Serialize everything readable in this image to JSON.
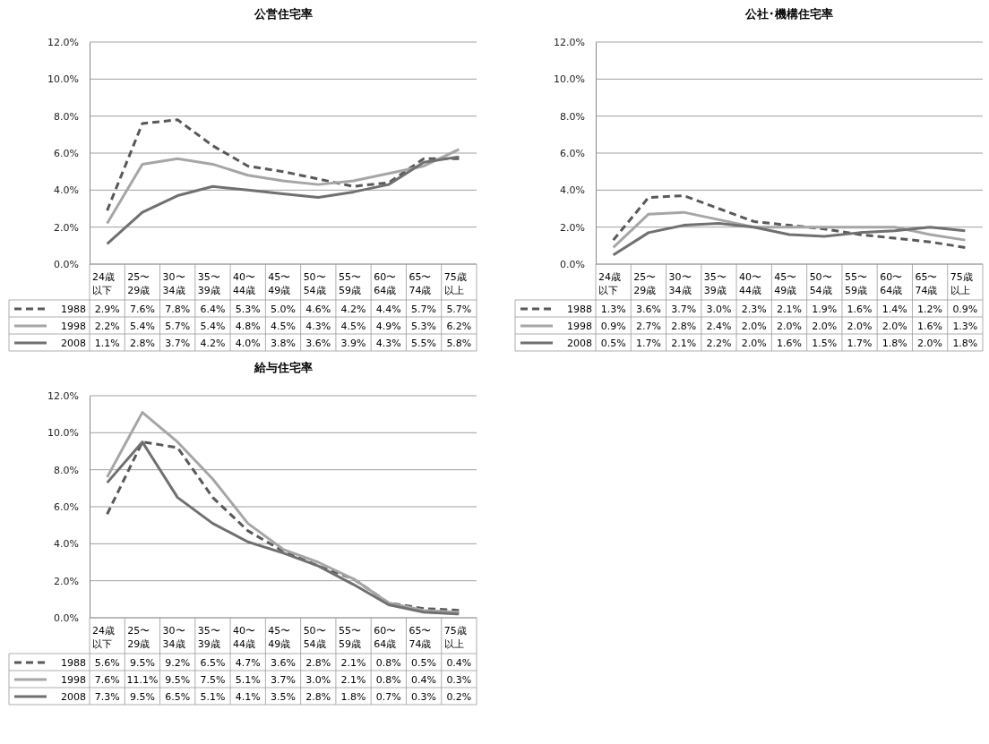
{
  "chart_data": [
    {
      "type": "line",
      "title": "公営住宅率",
      "categories": [
        "24歳以下",
        "25〜29歳",
        "30〜34歳",
        "35〜39歳",
        "40〜44歳",
        "45〜49歳",
        "50〜54歳",
        "55〜59歳",
        "60〜64歳",
        "65〜74歳",
        "75歳以上"
      ],
      "ylim": [
        0,
        12
      ],
      "yticks": [
        {
          "value": 0,
          "label": "0.0%"
        },
        {
          "value": 2,
          "label": "2.0%"
        },
        {
          "value": 4,
          "label": "4.0%"
        },
        {
          "value": 6,
          "label": "6.0%"
        },
        {
          "value": 8,
          "label": "8.0%"
        },
        {
          "value": 10,
          "label": "10.0%"
        },
        {
          "value": 12,
          "label": "12.0%"
        }
      ],
      "grid": "y",
      "legend": "bottom",
      "series": [
        {
          "name": "1988",
          "color": "#595959",
          "line_style": "dashed",
          "values": [
            2.9,
            7.6,
            7.8,
            6.4,
            5.3,
            5.0,
            4.6,
            4.2,
            4.4,
            5.7,
            5.7
          ],
          "value_labels": [
            "2.9%",
            "7.6%",
            "7.8%",
            "6.4%",
            "5.3%",
            "5.0%",
            "4.6%",
            "4.2%",
            "4.4%",
            "5.7%",
            "5.7%"
          ]
        },
        {
          "name": "1998",
          "color": "#a6a6a6",
          "line_style": "solid",
          "values": [
            2.2,
            5.4,
            5.7,
            5.4,
            4.8,
            4.5,
            4.3,
            4.5,
            4.9,
            5.3,
            6.2
          ],
          "value_labels": [
            "2.2%",
            "5.4%",
            "5.7%",
            "5.4%",
            "4.8%",
            "4.5%",
            "4.3%",
            "4.5%",
            "4.9%",
            "5.3%",
            "6.2%"
          ]
        },
        {
          "name": "2008",
          "color": "#707070",
          "line_style": "solid",
          "values": [
            1.1,
            2.8,
            3.7,
            4.2,
            4.0,
            3.8,
            3.6,
            3.9,
            4.3,
            5.5,
            5.8
          ],
          "value_labels": [
            "1.1%",
            "2.8%",
            "3.7%",
            "4.2%",
            "4.0%",
            "3.8%",
            "3.6%",
            "3.9%",
            "4.3%",
            "5.5%",
            "5.8%"
          ]
        }
      ]
    },
    {
      "type": "line",
      "title": "公社･機構住宅率",
      "categories": [
        "24歳以下",
        "25〜29歳",
        "30〜34歳",
        "35〜39歳",
        "40〜44歳",
        "45〜49歳",
        "50〜54歳",
        "55〜59歳",
        "60〜64歳",
        "65〜74歳",
        "75歳以上"
      ],
      "ylim": [
        0,
        12
      ],
      "yticks": [
        {
          "value": 0,
          "label": "0.0%"
        },
        {
          "value": 2,
          "label": "2.0%"
        },
        {
          "value": 4,
          "label": "4.0%"
        },
        {
          "value": 6,
          "label": "6.0%"
        },
        {
          "value": 8,
          "label": "8.0%"
        },
        {
          "value": 10,
          "label": "10.0%"
        },
        {
          "value": 12,
          "label": "12.0%"
        }
      ],
      "grid": "y",
      "legend": "bottom",
      "series": [
        {
          "name": "1988",
          "color": "#595959",
          "line_style": "dashed",
          "values": [
            1.3,
            3.6,
            3.7,
            3.0,
            2.3,
            2.1,
            1.9,
            1.6,
            1.4,
            1.2,
            0.9
          ],
          "value_labels": [
            "1.3%",
            "3.6%",
            "3.7%",
            "3.0%",
            "2.3%",
            "2.1%",
            "1.9%",
            "1.6%",
            "1.4%",
            "1.2%",
            "0.9%"
          ]
        },
        {
          "name": "1998",
          "color": "#a6a6a6",
          "line_style": "solid",
          "values": [
            0.9,
            2.7,
            2.8,
            2.4,
            2.0,
            2.0,
            2.0,
            2.0,
            2.0,
            1.6,
            1.3
          ],
          "value_labels": [
            "0.9%",
            "2.7%",
            "2.8%",
            "2.4%",
            "2.0%",
            "2.0%",
            "2.0%",
            "2.0%",
            "2.0%",
            "1.6%",
            "1.3%"
          ]
        },
        {
          "name": "2008",
          "color": "#707070",
          "line_style": "solid",
          "values": [
            0.5,
            1.7,
            2.1,
            2.2,
            2.0,
            1.6,
            1.5,
            1.7,
            1.8,
            2.0,
            1.8
          ],
          "value_labels": [
            "0.5%",
            "1.7%",
            "2.1%",
            "2.2%",
            "2.0%",
            "1.6%",
            "1.5%",
            "1.7%",
            "1.8%",
            "2.0%",
            "1.8%"
          ]
        }
      ]
    },
    {
      "type": "line",
      "title": "給与住宅率",
      "categories": [
        "24歳以下",
        "25〜29歳",
        "30〜34歳",
        "35〜39歳",
        "40〜44歳",
        "45〜49歳",
        "50〜54歳",
        "55〜59歳",
        "60〜64歳",
        "65〜74歳",
        "75歳以上"
      ],
      "ylim": [
        0,
        12
      ],
      "yticks": [
        {
          "value": 0,
          "label": "0.0%"
        },
        {
          "value": 2,
          "label": "2.0%"
        },
        {
          "value": 4,
          "label": "4.0%"
        },
        {
          "value": 6,
          "label": "6.0%"
        },
        {
          "value": 8,
          "label": "8.0%"
        },
        {
          "value": 10,
          "label": "10.0%"
        },
        {
          "value": 12,
          "label": "12.0%"
        }
      ],
      "grid": "y",
      "legend": "bottom",
      "series": [
        {
          "name": "1988",
          "color": "#595959",
          "line_style": "dashed",
          "values": [
            5.6,
            9.5,
            9.2,
            6.5,
            4.7,
            3.6,
            2.8,
            2.1,
            0.8,
            0.5,
            0.4
          ],
          "value_labels": [
            "5.6%",
            "9.5%",
            "9.2%",
            "6.5%",
            "4.7%",
            "3.6%",
            "2.8%",
            "2.1%",
            "0.8%",
            "0.5%",
            "0.4%"
          ]
        },
        {
          "name": "1998",
          "color": "#a6a6a6",
          "line_style": "solid",
          "values": [
            7.6,
            11.1,
            9.5,
            7.5,
            5.1,
            3.7,
            3.0,
            2.1,
            0.8,
            0.4,
            0.3
          ],
          "value_labels": [
            "7.6%",
            "11.1%",
            "9.5%",
            "7.5%",
            "5.1%",
            "3.7%",
            "3.0%",
            "2.1%",
            "0.8%",
            "0.4%",
            "0.3%"
          ]
        },
        {
          "name": "2008",
          "color": "#707070",
          "line_style": "solid",
          "values": [
            7.3,
            9.5,
            6.5,
            5.1,
            4.1,
            3.5,
            2.8,
            1.8,
            0.7,
            0.3,
            0.2
          ],
          "value_labels": [
            "7.3%",
            "9.5%",
            "6.5%",
            "5.1%",
            "4.1%",
            "3.5%",
            "2.8%",
            "1.8%",
            "0.7%",
            "0.3%",
            "0.2%"
          ]
        }
      ]
    }
  ]
}
